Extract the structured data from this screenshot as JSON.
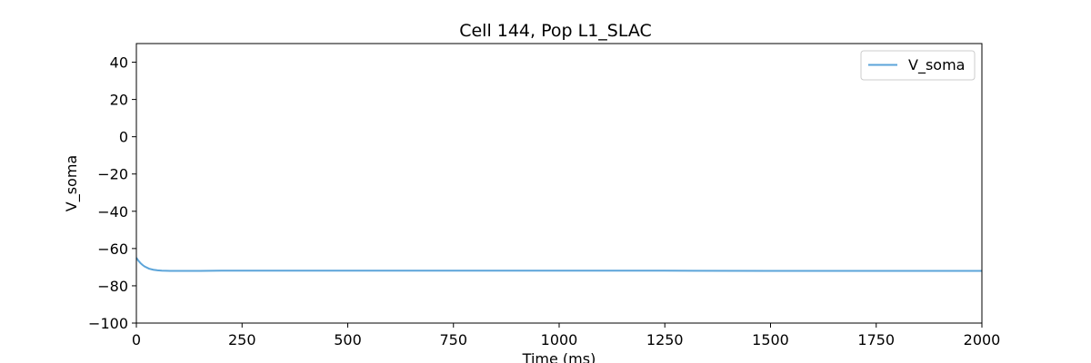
{
  "chart_data": {
    "type": "line",
    "title": "Cell 144, Pop L1_SLAC",
    "xlabel": "Time (ms)",
    "ylabel": "V_soma",
    "xlim": [
      0,
      2000
    ],
    "ylim": [
      -100,
      50
    ],
    "x_ticks": [
      0,
      250,
      500,
      750,
      1000,
      1250,
      1500,
      1750,
      2000
    ],
    "y_ticks": [
      -100,
      -80,
      -60,
      -40,
      -20,
      0,
      20,
      40
    ],
    "grid": false,
    "legend_position": "top-right",
    "series": [
      {
        "name": "V_soma",
        "color": "#5ba4d9",
        "x": [
          0,
          5,
          10,
          15,
          20,
          30,
          40,
          50,
          60,
          80,
          100,
          150,
          200,
          300,
          500,
          750,
          1000,
          1250,
          1500,
          1750,
          2000
        ],
        "y": [
          -65,
          -66.6,
          -67.9,
          -68.9,
          -69.7,
          -70.8,
          -71.4,
          -71.7,
          -71.9,
          -72.0,
          -72.0,
          -72.0,
          -71.9,
          -71.9,
          -71.9,
          -71.9,
          -71.9,
          -71.9,
          -72.0,
          -72.0,
          -72.0
        ]
      }
    ]
  }
}
